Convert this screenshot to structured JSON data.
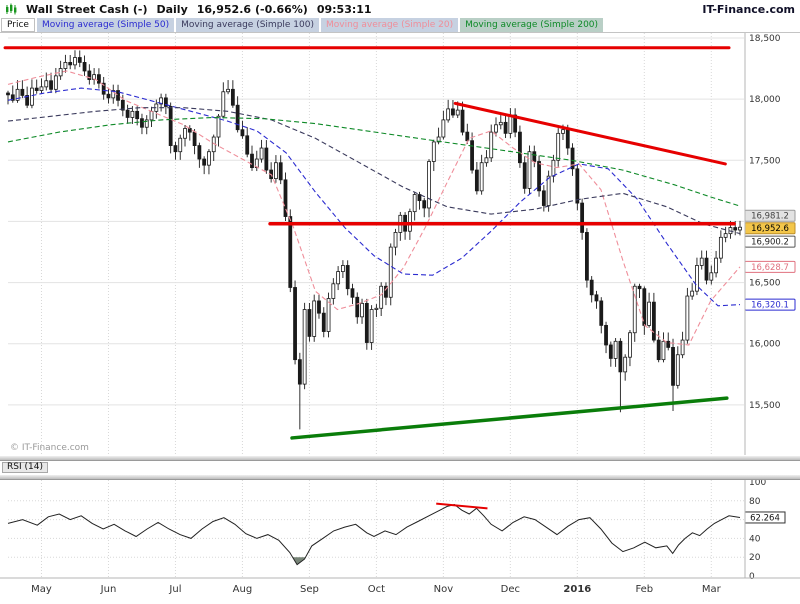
{
  "header": {
    "title": "Wall Street Cash (-)",
    "timeframe": "Daily",
    "last_price": "16,952.6",
    "change": "(-0.66%)",
    "time": "09:53:11",
    "brand": "IT-Finance.com"
  },
  "legend": {
    "price": {
      "label": "Price",
      "bg": "#ffffff",
      "color": "#111111"
    },
    "mas": [
      {
        "label": "Moving average (Simple 50)",
        "color": "#2b2bd0",
        "bg": "#c6d1e1"
      },
      {
        "label": "Moving average (Simple 100)",
        "color": "#3a3a5c",
        "bg": "#c6d1e1"
      },
      {
        "label": "Moving average (Simple 20)",
        "color": "#ef8e9a",
        "bg": "#c6d1e1"
      },
      {
        "label": "Moving average (Simple 200)",
        "color": "#0f8a28",
        "bg": "#b9cfc6"
      }
    ]
  },
  "watermark": "© IT-Finance.com",
  "rsi_panel_label": "RSI (14)",
  "chart_data": [
    {
      "type": "candlestick",
      "title": "Wall Street Cash (-) Daily",
      "ylim": [
        15115,
        18565
      ],
      "gridline_values": [
        18500,
        18000,
        17500,
        17000,
        16500,
        16000,
        15500
      ],
      "yticks": [
        {
          "value": 18500,
          "label": "18,500"
        },
        {
          "value": 18000,
          "label": "18,000"
        },
        {
          "value": 17500,
          "label": "17,500"
        },
        {
          "value": 16500,
          "label": "16,500"
        },
        {
          "value": 16000,
          "label": "16,000"
        },
        {
          "value": 15500,
          "label": "15,500"
        }
      ],
      "x_months": [
        {
          "label": "May"
        },
        {
          "label": "Jun"
        },
        {
          "label": "Jul"
        },
        {
          "label": "Aug"
        },
        {
          "label": "Sep"
        },
        {
          "label": "Oct"
        },
        {
          "label": "Nov"
        },
        {
          "label": "Dec"
        },
        {
          "label": "2016",
          "bold": true
        },
        {
          "label": "Feb"
        },
        {
          "label": "Mar"
        }
      ],
      "month_start_indices": [
        7,
        21,
        35,
        49,
        63,
        77,
        91,
        105,
        119,
        133,
        147
      ],
      "closes": [
        18035,
        17990,
        18080,
        18030,
        17950,
        18090,
        18070,
        18100,
        18150,
        18080,
        18190,
        18250,
        18300,
        18280,
        18340,
        18300,
        18230,
        18160,
        18200,
        18130,
        18040,
        18010,
        18070,
        17990,
        17910,
        17850,
        17900,
        17840,
        17770,
        17830,
        17900,
        17960,
        18010,
        17940,
        17620,
        17570,
        17680,
        17760,
        17730,
        17620,
        17510,
        17460,
        17570,
        17690,
        17860,
        18060,
        18080,
        17950,
        17750,
        17700,
        17550,
        17440,
        17510,
        17600,
        17420,
        17350,
        17480,
        17340,
        17040,
        16460,
        15870,
        15670,
        16280,
        16060,
        16350,
        16250,
        16100,
        16370,
        16490,
        16590,
        16640,
        16450,
        16380,
        16220,
        16330,
        16010,
        16280,
        16290,
        16470,
        16380,
        16790,
        16910,
        17050,
        16920,
        17080,
        17220,
        17170,
        17110,
        17490,
        17650,
        17690,
        17830,
        17920,
        17870,
        17910,
        17730,
        17660,
        17420,
        17250,
        17480,
        17520,
        17730,
        17790,
        17810,
        17720,
        17870,
        17730,
        17480,
        17270,
        17570,
        17490,
        17250,
        17130,
        17370,
        17500,
        17720,
        17750,
        17600,
        17430,
        17150,
        16910,
        16520,
        16400,
        16350,
        16150,
        15990,
        15880,
        16020,
        15770,
        15890,
        16090,
        16470,
        16450,
        16150,
        16340,
        16030,
        15870,
        16020,
        15970,
        15660,
        15910,
        16030,
        16390,
        16430,
        16640,
        16700,
        16520,
        16580,
        16700,
        16870,
        16900,
        16950,
        16930,
        16952.6
      ],
      "low_overrides": {
        "61": 15300,
        "128": 15440,
        "139": 15450
      },
      "moving_averages": [
        {
          "name": "Simple 20",
          "color": "#ef8e9a",
          "points": [
            [
              0,
              18120
            ],
            [
              0.04,
              18180
            ],
            [
              0.08,
              18230
            ],
            [
              0.12,
              18160
            ],
            [
              0.16,
              17990
            ],
            [
              0.2,
              17890
            ],
            [
              0.24,
              17790
            ],
            [
              0.28,
              17640
            ],
            [
              0.32,
              17510
            ],
            [
              0.36,
              17380
            ],
            [
              0.39,
              16950
            ],
            [
              0.42,
              16430
            ],
            [
              0.45,
              16280
            ],
            [
              0.48,
              16330
            ],
            [
              0.51,
              16400
            ],
            [
              0.54,
              16620
            ],
            [
              0.57,
              16950
            ],
            [
              0.6,
              17320
            ],
            [
              0.63,
              17680
            ],
            [
              0.66,
              17740
            ],
            [
              0.69,
              17600
            ],
            [
              0.72,
              17480
            ],
            [
              0.75,
              17440
            ],
            [
              0.78,
              17470
            ],
            [
              0.81,
              17260
            ],
            [
              0.84,
              16680
            ],
            [
              0.87,
              16150
            ],
            [
              0.9,
              16010
            ],
            [
              0.93,
              15990
            ],
            [
              0.96,
              16350
            ],
            [
              1,
              16628.7
            ]
          ]
        },
        {
          "name": "Simple 50",
          "color": "#2b2bd0",
          "points": [
            [
              0,
              17990
            ],
            [
              0.05,
              18050
            ],
            [
              0.1,
              18090
            ],
            [
              0.15,
              18060
            ],
            [
              0.2,
              17980
            ],
            [
              0.25,
              17900
            ],
            [
              0.3,
              17820
            ],
            [
              0.34,
              17740
            ],
            [
              0.38,
              17560
            ],
            [
              0.42,
              17240
            ],
            [
              0.46,
              16950
            ],
            [
              0.5,
              16720
            ],
            [
              0.54,
              16570
            ],
            [
              0.58,
              16560
            ],
            [
              0.62,
              16700
            ],
            [
              0.66,
              16920
            ],
            [
              0.7,
              17160
            ],
            [
              0.74,
              17360
            ],
            [
              0.78,
              17470
            ],
            [
              0.82,
              17430
            ],
            [
              0.86,
              17180
            ],
            [
              0.9,
              16820
            ],
            [
              0.94,
              16480
            ],
            [
              0.97,
              16310
            ],
            [
              1,
              16320.1
            ]
          ]
        },
        {
          "name": "Simple 100",
          "color": "#3a3a5c",
          "points": [
            [
              0,
              17820
            ],
            [
              0.06,
              17860
            ],
            [
              0.12,
              17900
            ],
            [
              0.18,
              17930
            ],
            [
              0.24,
              17930
            ],
            [
              0.3,
              17900
            ],
            [
              0.36,
              17830
            ],
            [
              0.42,
              17680
            ],
            [
              0.48,
              17480
            ],
            [
              0.54,
              17280
            ],
            [
              0.6,
              17120
            ],
            [
              0.66,
              17060
            ],
            [
              0.72,
              17100
            ],
            [
              0.78,
              17180
            ],
            [
              0.84,
              17230
            ],
            [
              0.9,
              17120
            ],
            [
              0.95,
              16980
            ],
            [
              1,
              16900.2
            ]
          ]
        },
        {
          "name": "Simple 200",
          "color": "#0f8a28",
          "points": [
            [
              0,
              17650
            ],
            [
              0.07,
              17730
            ],
            [
              0.14,
              17790
            ],
            [
              0.21,
              17830
            ],
            [
              0.28,
              17850
            ],
            [
              0.35,
              17840
            ],
            [
              0.42,
              17800
            ],
            [
              0.49,
              17740
            ],
            [
              0.56,
              17680
            ],
            [
              0.63,
              17620
            ],
            [
              0.7,
              17560
            ],
            [
              0.77,
              17500
            ],
            [
              0.84,
              17420
            ],
            [
              0.91,
              17300
            ],
            [
              0.96,
              17200
            ],
            [
              1,
              17125
            ]
          ]
        }
      ],
      "trendlines": [
        {
          "color": "#e60000",
          "width": 3,
          "points": [
            [
              -0.004,
              18420
            ],
            [
              0.985,
              18420
            ]
          ]
        },
        {
          "color": "#e60000",
          "width": 3,
          "points": [
            [
              0.611,
              17965
            ],
            [
              0.98,
              17470
            ]
          ]
        },
        {
          "color": "#e60000",
          "width": 3.5,
          "points": [
            [
              0.358,
              16981
            ],
            [
              0.992,
              16981
            ]
          ]
        },
        {
          "color": "#0a7d0a",
          "width": 3.5,
          "points": [
            [
              0.388,
              15230
            ],
            [
              0.982,
              15555
            ]
          ]
        }
      ],
      "price_markers": [
        {
          "label": "16,981.2",
          "value": 16981.2,
          "dy": -8,
          "bg": "#e2e2e2",
          "color": "#444444",
          "border": "#999999"
        },
        {
          "label": "16,952.6",
          "value": 16952.6,
          "dy": 1,
          "bg": "#f3c64a",
          "color": "#000000",
          "border": "#bd8f2a"
        },
        {
          "label": "16,900.2",
          "value": 16900.2,
          "dy": 8,
          "bg": "#ffffff",
          "color": "#222222",
          "border": "#555555"
        },
        {
          "label": "16,628.7",
          "value": 16628.7,
          "dy": 0,
          "bg": "#ffffff",
          "color": "#e0707f",
          "border": "#e0707f"
        },
        {
          "label": "16,320.1",
          "value": 16320.1,
          "dy": 0,
          "bg": "#ffffff",
          "color": "#2b2bd0",
          "border": "#2b2bd0"
        }
      ]
    },
    {
      "type": "line",
      "title": "RSI (14)",
      "ylim": [
        0,
        100
      ],
      "gridline_values": [
        20,
        40,
        60,
        80
      ],
      "yticks": [
        {
          "value": 100,
          "label": "100"
        },
        {
          "value": 80,
          "label": "80"
        },
        {
          "value": 40,
          "label": "40"
        },
        {
          "value": 20,
          "label": "20"
        },
        {
          "value": 0,
          "label": "0"
        }
      ],
      "marker": {
        "label": "62.264",
        "value": 62.264,
        "bg": "#ffffff",
        "color": "#111111",
        "border": "#333333"
      },
      "fill_below": {
        "threshold": 20,
        "color": "#5f6f5f"
      },
      "trendlines": [
        {
          "color": "#e60000",
          "width": 2,
          "points": [
            [
              0.585,
              77
            ],
            [
              0.655,
              72
            ]
          ]
        }
      ],
      "points": [
        [
          0,
          56
        ],
        [
          0.02,
          60
        ],
        [
          0.04,
          54
        ],
        [
          0.055,
          63
        ],
        [
          0.07,
          66
        ],
        [
          0.085,
          60
        ],
        [
          0.1,
          64
        ],
        [
          0.115,
          56
        ],
        [
          0.13,
          50
        ],
        [
          0.145,
          55
        ],
        [
          0.16,
          48
        ],
        [
          0.175,
          42
        ],
        [
          0.19,
          50
        ],
        [
          0.205,
          57
        ],
        [
          0.22,
          50
        ],
        [
          0.235,
          44
        ],
        [
          0.25,
          40
        ],
        [
          0.265,
          50
        ],
        [
          0.28,
          58
        ],
        [
          0.295,
          62
        ],
        [
          0.31,
          55
        ],
        [
          0.325,
          45
        ],
        [
          0.34,
          40
        ],
        [
          0.355,
          44
        ],
        [
          0.37,
          38
        ],
        [
          0.385,
          25
        ],
        [
          0.395,
          12
        ],
        [
          0.405,
          18
        ],
        [
          0.415,
          32
        ],
        [
          0.43,
          40
        ],
        [
          0.445,
          48
        ],
        [
          0.46,
          52
        ],
        [
          0.475,
          55
        ],
        [
          0.49,
          46
        ],
        [
          0.5,
          42
        ],
        [
          0.515,
          48
        ],
        [
          0.53,
          44
        ],
        [
          0.545,
          52
        ],
        [
          0.56,
          58
        ],
        [
          0.575,
          64
        ],
        [
          0.59,
          70
        ],
        [
          0.6,
          74
        ],
        [
          0.61,
          76
        ],
        [
          0.62,
          70
        ],
        [
          0.63,
          66
        ],
        [
          0.64,
          72
        ],
        [
          0.65,
          64
        ],
        [
          0.66,
          55
        ],
        [
          0.675,
          48
        ],
        [
          0.69,
          57
        ],
        [
          0.705,
          63
        ],
        [
          0.72,
          60
        ],
        [
          0.735,
          52
        ],
        [
          0.75,
          44
        ],
        [
          0.765,
          53
        ],
        [
          0.78,
          60
        ],
        [
          0.795,
          62
        ],
        [
          0.81,
          50
        ],
        [
          0.825,
          35
        ],
        [
          0.84,
          26
        ],
        [
          0.855,
          30
        ],
        [
          0.87,
          36
        ],
        [
          0.885,
          30
        ],
        [
          0.9,
          32
        ],
        [
          0.908,
          24
        ],
        [
          0.916,
          33
        ],
        [
          0.925,
          40
        ],
        [
          0.935,
          46
        ],
        [
          0.945,
          43
        ],
        [
          0.955,
          50
        ],
        [
          0.965,
          56
        ],
        [
          0.975,
          60
        ],
        [
          0.985,
          64
        ],
        [
          1,
          62.264
        ]
      ]
    }
  ]
}
